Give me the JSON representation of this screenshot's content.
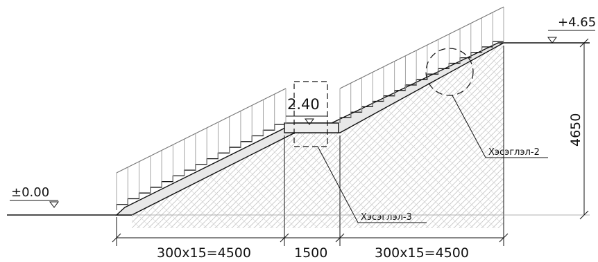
{
  "elevations": {
    "base": "±0.00",
    "top": "+4.65",
    "landing": "2.40"
  },
  "callouts": {
    "detail_2": "Хэсэглэл-2",
    "detail_3": "Хэсэглэл-3"
  },
  "dimensions": {
    "run_left": "300x15=4500",
    "landing_length": "1500",
    "run_right": "300x15=4500",
    "total_height": "4650"
  },
  "stairs": {
    "steps_per_flight": 15
  },
  "colors": {
    "line": "#111111",
    "hatch": "#c8c8c8",
    "railing": "#9a9a9a"
  }
}
